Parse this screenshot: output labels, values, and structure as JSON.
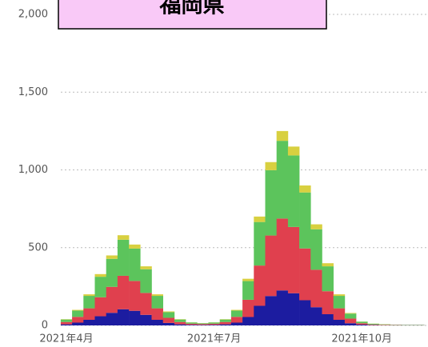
{
  "chart_data": {
    "type": "stacked_bar",
    "title": "福岡県",
    "categories": [
      "2021年4月",
      null,
      null,
      null,
      null,
      null,
      null,
      null,
      null,
      null,
      null,
      null,
      null,
      "2021年7月",
      null,
      null,
      null,
      null,
      null,
      null,
      null,
      null,
      null,
      null,
      null,
      null,
      "2021年10月",
      null,
      null,
      null,
      null,
      null
    ],
    "series": [
      {
        "color": "#1c1ca0",
        "values": [
          7,
          18,
          36,
          59,
          81,
          104,
          94,
          68,
          36,
          16,
          7,
          4,
          3,
          4,
          7,
          18,
          54,
          126,
          189,
          225,
          207,
          162,
          117,
          72,
          36,
          14,
          5,
          2,
          1,
          1,
          1,
          1
        ]
      },
      {
        "color": "#e0404e",
        "values": [
          15,
          37,
          74,
          122,
          167,
          215,
          192,
          141,
          74,
          33,
          15,
          7,
          6,
          7,
          15,
          37,
          111,
          259,
          389,
          462,
          426,
          333,
          241,
          148,
          74,
          30,
          9,
          4,
          3,
          2,
          1,
          1
        ]
      },
      {
        "color": "#5cc45c",
        "values": [
          16,
          40,
          80,
          132,
          180,
          232,
          208,
          152,
          80,
          36,
          16,
          8,
          5,
          8,
          16,
          40,
          120,
          280,
          420,
          500,
          460,
          360,
          260,
          160,
          80,
          32,
          10,
          5,
          3,
          2,
          2,
          2
        ]
      },
      {
        "color": "#d8d040",
        "values": [
          2,
          5,
          10,
          17,
          22,
          29,
          26,
          19,
          10,
          5,
          2,
          1,
          1,
          1,
          2,
          5,
          15,
          35,
          52,
          63,
          57,
          45,
          32,
          20,
          10,
          4,
          1,
          1,
          1,
          0,
          0,
          0
        ]
      }
    ],
    "ylim": [
      0,
      2000
    ],
    "yticks": [
      0,
      500,
      {
        "value": 1000,
        "label": "1,000"
      },
      {
        "value": 1500,
        "label": "1,500"
      },
      {
        "value": 2000,
        "label": "2,000"
      }
    ],
    "grid": true
  }
}
